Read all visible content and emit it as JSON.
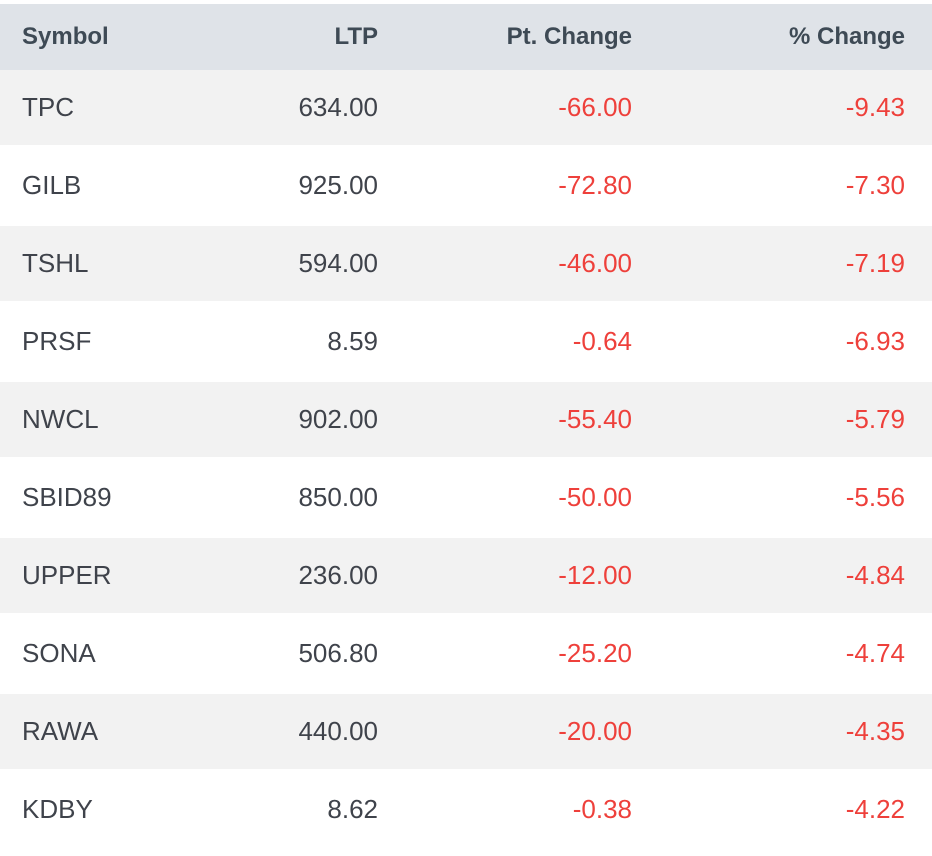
{
  "table": {
    "columns": [
      {
        "label": "Symbol",
        "align": "left"
      },
      {
        "label": "LTP",
        "align": "right"
      },
      {
        "label": "Pt. Change",
        "align": "right"
      },
      {
        "label": "% Change",
        "align": "right"
      }
    ],
    "rows": [
      {
        "symbol": "TPC",
        "ltp": "634.00",
        "pt_change": "-66.00",
        "pct_change": "-9.43"
      },
      {
        "symbol": "GILB",
        "ltp": "925.00",
        "pt_change": "-72.80",
        "pct_change": "-7.30"
      },
      {
        "symbol": "TSHL",
        "ltp": "594.00",
        "pt_change": "-46.00",
        "pct_change": "-7.19"
      },
      {
        "symbol": "PRSF",
        "ltp": "8.59",
        "pt_change": "-0.64",
        "pct_change": "-6.93"
      },
      {
        "symbol": "NWCL",
        "ltp": "902.00",
        "pt_change": "-55.40",
        "pct_change": "-5.79"
      },
      {
        "symbol": "SBID89",
        "ltp": "850.00",
        "pt_change": "-50.00",
        "pct_change": "-5.56"
      },
      {
        "symbol": "UPPER",
        "ltp": "236.00",
        "pt_change": "-12.00",
        "pct_change": "-4.84"
      },
      {
        "symbol": "SONA",
        "ltp": "506.80",
        "pt_change": "-25.20",
        "pct_change": "-4.74"
      },
      {
        "symbol": "RAWA",
        "ltp": "440.00",
        "pt_change": "-20.00",
        "pct_change": "-4.35"
      },
      {
        "symbol": "KDBY",
        "ltp": "8.62",
        "pt_change": "-0.38",
        "pct_change": "-4.22"
      }
    ]
  },
  "colors": {
    "header_bg": "#dfe3e8",
    "header_text": "#3e4a55",
    "body_text": "#3f434b",
    "negative_text": "#ee403b",
    "stripe_row_bg": "#f2f2f2",
    "row_separator": "#ffffff"
  }
}
